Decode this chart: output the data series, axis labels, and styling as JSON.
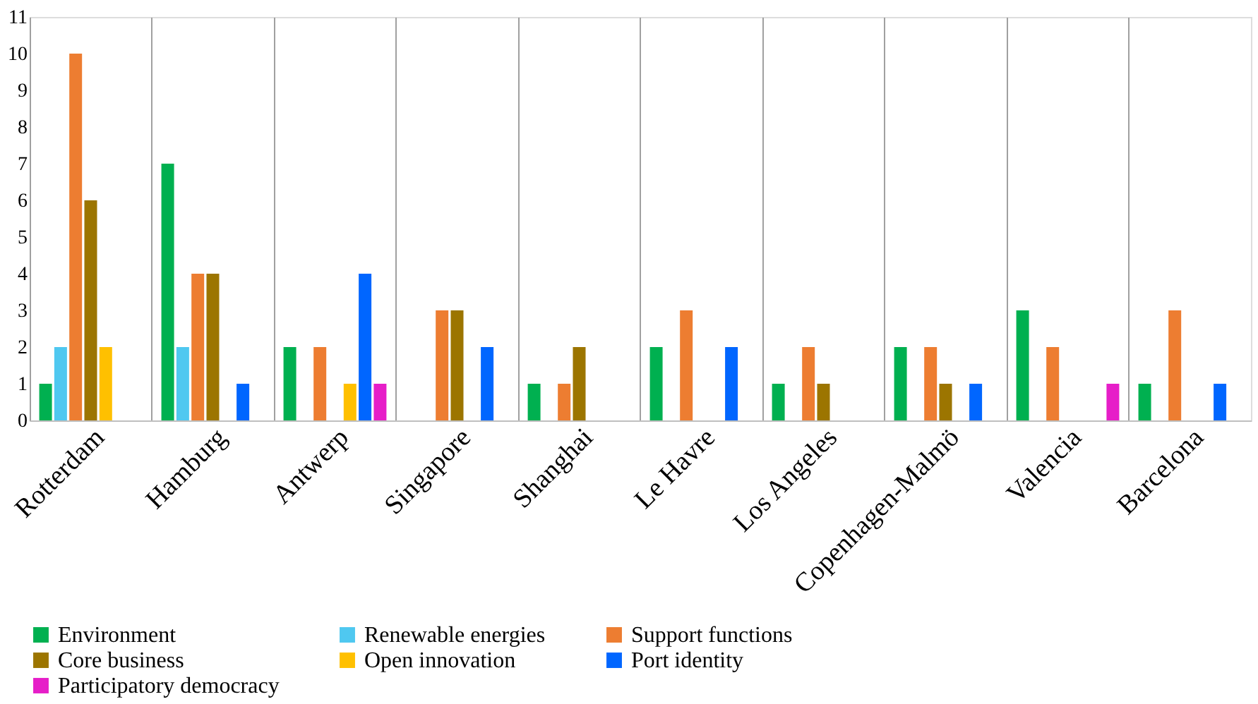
{
  "chart_data": {
    "type": "bar",
    "categories": [
      "Rotterdam",
      "Hamburg",
      "Antwerp",
      "Singapore",
      "Shanghai",
      "Le Havre",
      "Los Angeles",
      "Copenhagen-Malmö",
      "Valencia",
      "Barcelona"
    ],
    "series": [
      {
        "name": "Environment",
        "color": "#00b050",
        "values": [
          1,
          7,
          2,
          0,
          1,
          2,
          1,
          2,
          3,
          1
        ]
      },
      {
        "name": "Renewable energies",
        "color": "#4fc8f0",
        "values": [
          2,
          2,
          0,
          0,
          0,
          0,
          0,
          0,
          0,
          0
        ]
      },
      {
        "name": "Support functions",
        "color": "#ed7d31",
        "values": [
          10,
          4,
          2,
          3,
          1,
          3,
          2,
          2,
          2,
          3
        ]
      },
      {
        "name": "Core business",
        "color": "#9c7500",
        "values": [
          6,
          4,
          0,
          3,
          2,
          0,
          1,
          1,
          0,
          0
        ]
      },
      {
        "name": "Open innovation",
        "color": "#ffc000",
        "values": [
          2,
          0,
          1,
          0,
          0,
          0,
          0,
          0,
          0,
          0
        ]
      },
      {
        "name": "Port identity",
        "color": "#0066ff",
        "values": [
          0,
          1,
          4,
          2,
          0,
          2,
          0,
          1,
          0,
          1
        ]
      },
      {
        "name": "Participatory democracy",
        "color": "#e61ec8",
        "values": [
          0,
          0,
          1,
          0,
          0,
          0,
          0,
          0,
          1,
          0
        ]
      }
    ],
    "ylim": [
      0,
      11
    ],
    "yticks": [
      0,
      1,
      2,
      3,
      4,
      5,
      6,
      7,
      8,
      9,
      10,
      11
    ],
    "grid": "x",
    "legend": "bottom"
  }
}
